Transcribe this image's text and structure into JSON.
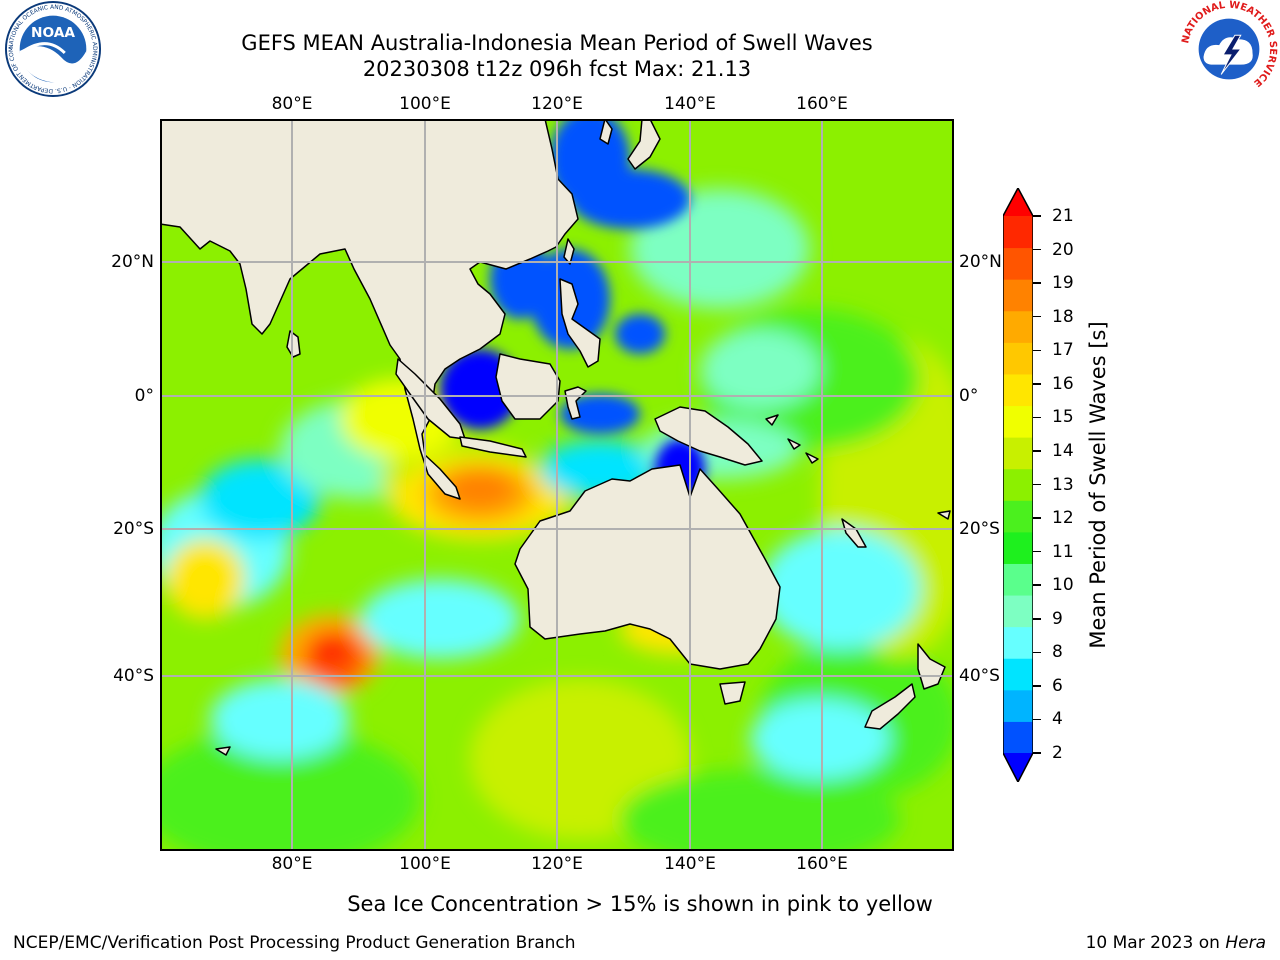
{
  "title": {
    "line1": "GEFS MEAN Australia-Indonesia Mean Period of Swell Waves",
    "line2": "20230308 t12z 096h fcst   Max: 21.13"
  },
  "logos": {
    "noaa": {
      "text": "NOAA",
      "ring_text": "NATIONAL OCEANIC AND ATMOSPHERIC ADMINISTRATION · U.S. DEPARTMENT OF COMMERCE"
    },
    "nws": {
      "ring_text": "NATIONAL WEATHER SERVICE"
    }
  },
  "map": {
    "lon_labels": [
      "80°E",
      "100°E",
      "120°E",
      "140°E",
      "160°E"
    ],
    "lat_labels": [
      "20°N",
      "0°",
      "20°S",
      "40°S"
    ],
    "extent": {
      "lon": [
        60,
        180
      ],
      "lat": [
        -60,
        40
      ]
    },
    "land_color": "#efebdc",
    "grid_color": "#b0b0b0"
  },
  "colorbar": {
    "label": "Mean Period of Swell Waves [s]",
    "ticks": [
      "2",
      "4",
      "6",
      "8",
      "9",
      "10",
      "11",
      "12",
      "13",
      "14",
      "15",
      "16",
      "17",
      "18",
      "19",
      "20",
      "21"
    ],
    "colors": [
      "#0052ff",
      "#00b4ff",
      "#00e4ff",
      "#66ffff",
      "#7dffc2",
      "#5aff8c",
      "#1ef01e",
      "#4bf01e",
      "#8cf000",
      "#c8f000",
      "#f0ff00",
      "#ffe600",
      "#ffc800",
      "#ffaa00",
      "#ff8200",
      "#ff5500",
      "#ff2800"
    ],
    "under_color": "#0000ff",
    "over_color": "#ff0000"
  },
  "caption": "Sea Ice Concentration > 15% is shown in pink to yellow",
  "footer": {
    "left": "NCEP/EMC/Verification Post Processing Product Generation Branch",
    "right_prefix": "10 Mar 2023 on ",
    "right_host": "Hera"
  }
}
